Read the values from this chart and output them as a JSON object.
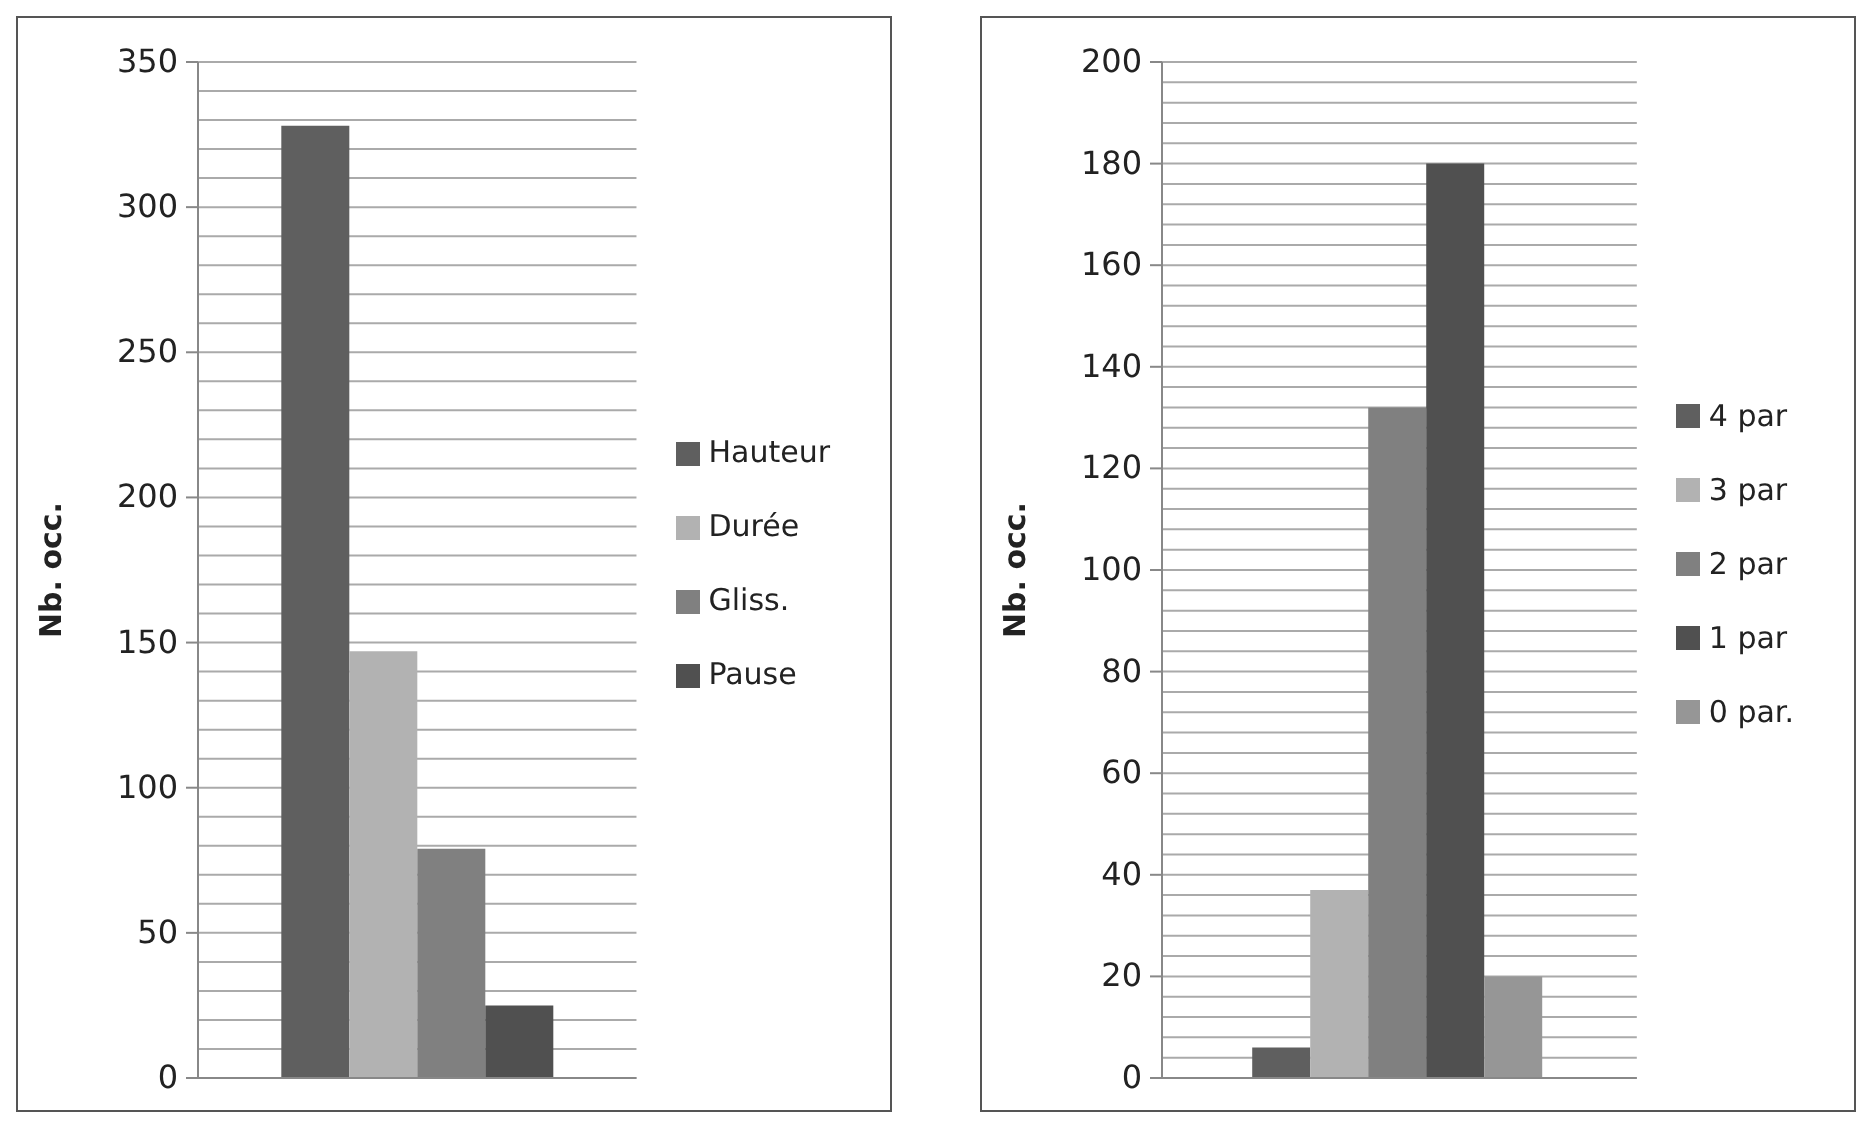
{
  "chart_data": [
    {
      "type": "bar",
      "categories": [
        null
      ],
      "ylabel": "Nb. occ.",
      "ylim": [
        0,
        350
      ],
      "yticks": [
        0,
        {
          "value": 10,
          "label": null
        },
        {
          "value": 20,
          "label": null
        },
        {
          "value": 30,
          "label": null
        },
        {
          "value": 40,
          "label": null
        },
        50,
        {
          "value": 60,
          "label": null
        },
        {
          "value": 70,
          "label": null
        },
        {
          "value": 80,
          "label": null
        },
        {
          "value": 90,
          "label": null
        },
        100,
        {
          "value": 110,
          "label": null
        },
        {
          "value": 120,
          "label": null
        },
        {
          "value": 130,
          "label": null
        },
        {
          "value": 140,
          "label": null
        },
        150,
        {
          "value": 160,
          "label": null
        },
        {
          "value": 170,
          "label": null
        },
        {
          "value": 180,
          "label": null
        },
        {
          "value": 190,
          "label": null
        },
        200,
        {
          "value": 210,
          "label": null
        },
        {
          "value": 220,
          "label": null
        },
        {
          "value": 230,
          "label": null
        },
        {
          "value": 240,
          "label": null
        },
        250,
        {
          "value": 260,
          "label": null
        },
        {
          "value": 270,
          "label": null
        },
        {
          "value": 280,
          "label": null
        },
        {
          "value": 290,
          "label": null
        },
        300,
        {
          "value": 310,
          "label": null
        },
        {
          "value": 320,
          "label": null
        },
        {
          "value": 330,
          "label": null
        },
        {
          "value": 340,
          "label": null
        },
        350
      ],
      "grid": "y",
      "legend": "right",
      "series": [
        {
          "name": "Hauteur",
          "color": "#5f5f5f",
          "values": [
            328
          ]
        },
        {
          "name": "Durée",
          "color": "#b2b2b2",
          "values": [
            147
          ]
        },
        {
          "name": "Gliss.",
          "color": "#808080",
          "values": [
            79
          ]
        },
        {
          "name": "Pause",
          "color": "#505050",
          "values": [
            25
          ]
        }
      ]
    },
    {
      "type": "bar",
      "categories": [
        null
      ],
      "ylabel": "Nb. occ.",
      "ylim": [
        0,
        200
      ],
      "yticks": [
        0,
        {
          "value": 4,
          "label": null
        },
        {
          "value": 8,
          "label": null
        },
        {
          "value": 12,
          "label": null
        },
        {
          "value": 16,
          "label": null
        },
        20,
        {
          "value": 24,
          "label": null
        },
        {
          "value": 28,
          "label": null
        },
        {
          "value": 32,
          "label": null
        },
        {
          "value": 36,
          "label": null
        },
        40,
        {
          "value": 44,
          "label": null
        },
        {
          "value": 48,
          "label": null
        },
        {
          "value": 52,
          "label": null
        },
        {
          "value": 56,
          "label": null
        },
        60,
        {
          "value": 64,
          "label": null
        },
        {
          "value": 68,
          "label": null
        },
        {
          "value": 72,
          "label": null
        },
        {
          "value": 76,
          "label": null
        },
        80,
        {
          "value": 84,
          "label": null
        },
        {
          "value": 88,
          "label": null
        },
        {
          "value": 92,
          "label": null
        },
        {
          "value": 96,
          "label": null
        },
        100,
        {
          "value": 104,
          "label": null
        },
        {
          "value": 108,
          "label": null
        },
        {
          "value": 112,
          "label": null
        },
        {
          "value": 116,
          "label": null
        },
        120,
        {
          "value": 124,
          "label": null
        },
        {
          "value": 128,
          "label": null
        },
        {
          "value": 132,
          "label": null
        },
        {
          "value": 136,
          "label": null
        },
        140,
        {
          "value": 144,
          "label": null
        },
        {
          "value": 148,
          "label": null
        },
        {
          "value": 152,
          "label": null
        },
        {
          "value": 156,
          "label": null
        },
        160,
        {
          "value": 164,
          "label": null
        },
        {
          "value": 168,
          "label": null
        },
        {
          "value": 172,
          "label": null
        },
        {
          "value": 176,
          "label": null
        },
        180,
        {
          "value": 184,
          "label": null
        },
        {
          "value": 188,
          "label": null
        },
        {
          "value": 192,
          "label": null
        },
        {
          "value": 196,
          "label": null
        },
        200
      ],
      "grid": "y",
      "legend": "right",
      "series": [
        {
          "name": "4 par",
          "color": "#5f5f5f",
          "values": [
            6
          ]
        },
        {
          "name": "3 par",
          "color": "#b2b2b2",
          "values": [
            37
          ]
        },
        {
          "name": "2 par",
          "color": "#808080",
          "values": [
            132
          ]
        },
        {
          "name": "1 par",
          "color": "#505050",
          "values": [
            180
          ]
        },
        {
          "name": "0 par.",
          "color": "#969696",
          "values": [
            20
          ]
        }
      ]
    }
  ]
}
